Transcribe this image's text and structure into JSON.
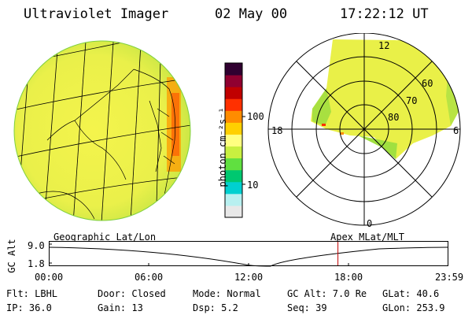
{
  "header": {
    "instrument": "Ultraviolet Imager",
    "date": "02 May 00",
    "time": "17:22:12 UT"
  },
  "colorbar": {
    "unit_label": "photon cm⁻²s⁻¹",
    "ticks": [
      "100",
      "10"
    ],
    "colors": [
      "#e8e8e8",
      "#b8f0f0",
      "#00d0d0",
      "#00c870",
      "#60e040",
      "#c8f040",
      "#ffff80",
      "#ffd000",
      "#ff8c00",
      "#ff3000",
      "#c00000",
      "#900030",
      "#300030"
    ]
  },
  "geo_panel": {
    "label": "Geographic Lat/Lon"
  },
  "polar_panel": {
    "label": "Apex MLat/MLT",
    "lat_labels": [
      "60",
      "70",
      "80"
    ],
    "mlt_labels": {
      "top": "12",
      "left": "18",
      "right": "6",
      "bottom": "0"
    }
  },
  "alt_plot": {
    "ylabel": "GC Alt",
    "ytick_top": "9.0",
    "ytick_bottom": "1.8",
    "xticks": [
      "00:00",
      "06:00",
      "12:00",
      "18:00",
      "23:59"
    ],
    "current_time_marker_fraction": 0.724
  },
  "footer": {
    "flt": "Flt: LBHL",
    "ip": "IP: 36.0",
    "door": "Door: Closed",
    "gain": "Gain: 13",
    "mode": "Mode: Normal",
    "dsp": "Dsp:    5.2",
    "gcalt": "GC Alt: 7.0 Re",
    "seq": "Seq: 39",
    "glat": "GLat:  40.6",
    "glon": "GLon: 253.9"
  }
}
